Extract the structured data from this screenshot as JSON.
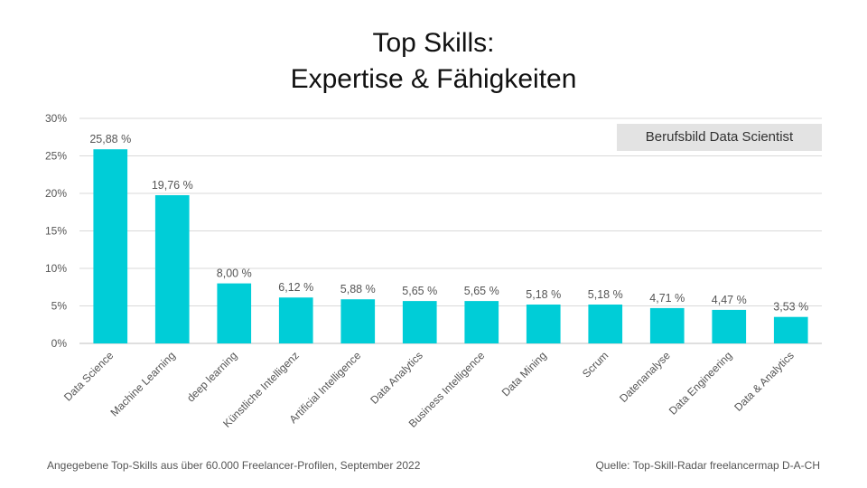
{
  "title_line1": "Top Skills:",
  "title_line2": "Expertise & Fähigkeiten",
  "legend_label": "Berufsbild Data Scientist",
  "footer_left": "Angegebene Top-Skills aus über 60.000 Freelancer-Profilen, September 2022",
  "footer_right": "Quelle: Top-Skill-Radar freelancermap D-A-CH",
  "colors": {
    "bar": "#00cdd7",
    "grid": "#d9d9d9",
    "text": "#555555"
  },
  "chart_data": {
    "type": "bar",
    "title": "Top Skills: Expertise & Fähigkeiten",
    "categories": [
      "Data Science",
      "Machine Learning",
      "deep learning",
      "Künstliche Intelligenz",
      "Artificial Intelligence",
      "Data Analytics",
      "Business Intelligence",
      "Data Mining",
      "Scrum",
      "Datenanalyse",
      "Data Engineering",
      "Data & Analytics"
    ],
    "values": [
      25.88,
      19.76,
      8.0,
      6.12,
      5.88,
      5.65,
      5.65,
      5.18,
      5.18,
      4.71,
      4.47,
      3.53
    ],
    "value_labels": [
      "25,88 %",
      "19,76 %",
      "8,00 %",
      "6,12 %",
      "5,88 %",
      "5,65 %",
      "5,65 %",
      "5,18 %",
      "5,18 %",
      "4,71 %",
      "4,47 %",
      "3,53 %"
    ],
    "y_ticks": [
      0,
      5,
      10,
      15,
      20,
      25,
      30
    ],
    "y_tick_labels": [
      "0%",
      "5%",
      "10%",
      "15%",
      "20%",
      "25%",
      "30%"
    ],
    "ylim": [
      0,
      30
    ],
    "xlabel": "",
    "ylabel": "",
    "grid": true,
    "legend_position": "top-right"
  }
}
